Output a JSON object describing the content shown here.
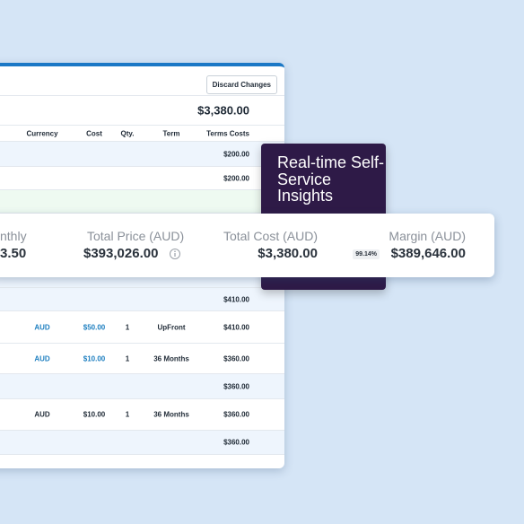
{
  "table": {
    "button": "Discard Changes",
    "total": "$3,380.00",
    "headers": [
      "Currency",
      "Cost",
      "Qty.",
      "Term",
      "Terms Costs"
    ],
    "rows": [
      {
        "terms_cost": "$200.00"
      },
      {
        "terms_cost": "$200.00"
      },
      {
        "terms_cost": "$410.00"
      },
      {
        "currency": "AUD",
        "cost": "$50.00",
        "qty": "1",
        "term": "UpFront",
        "terms_cost": "$410.00",
        "cost_color": "#1e7fc0"
      },
      {
        "currency": "AUD",
        "cost": "$10.00",
        "qty": "1",
        "term": "36 Months",
        "terms_cost": "$360.00",
        "cost_color": "#1e7fc0"
      },
      {
        "terms_cost": "$360.00"
      },
      {
        "currency": "AUD",
        "cost": "$10.00",
        "qty": "1",
        "term": "36 Months",
        "terms_cost": "$360.00"
      },
      {
        "terms_cost": "$360.00"
      }
    ]
  },
  "callout": "Real-time Self-Service Insights",
  "summary": {
    "partial_label": "nthly",
    "partial_value": "3.50",
    "price_label": "Total Price (AUD)",
    "price_value": "$393,026.00",
    "cost_label": "Total Cost (AUD)",
    "cost_value": "$3,380.00",
    "margin_label": "Margin (AUD)",
    "margin_percent": "99.14%",
    "margin_value": "$389,646.00"
  }
}
